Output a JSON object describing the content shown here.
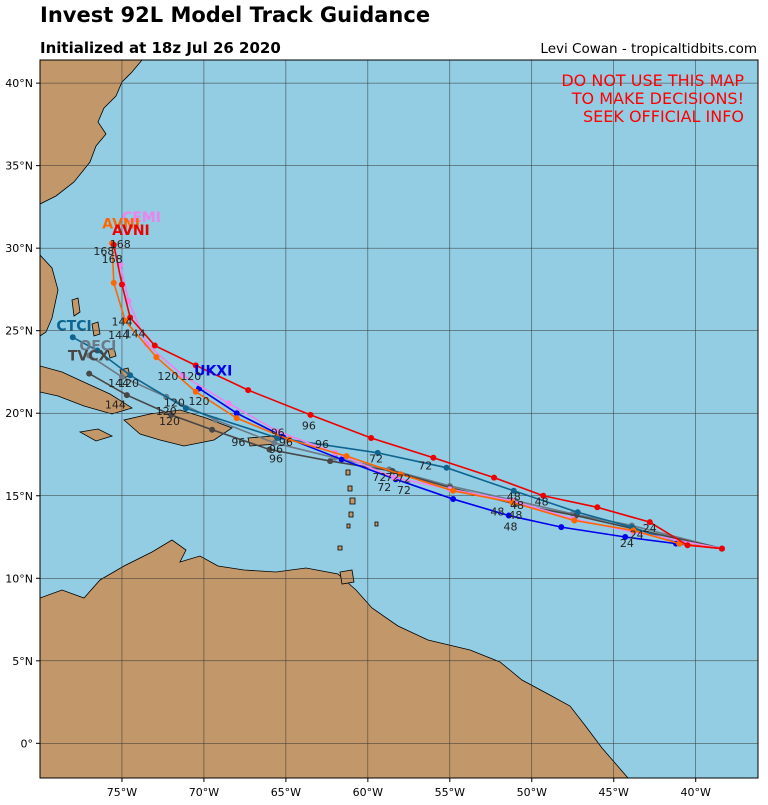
{
  "title": "Invest 92L Model Track Guidance",
  "subtitle": "Initialized at 18z Jul 26 2020",
  "credit": "Levi Cowan - tropicaltidbits.com",
  "warning": [
    "DO NOT USE THIS MAP",
    "TO MAKE DECISIONS!",
    "SEEK OFFICIAL INFO"
  ],
  "map": {
    "xlim": [
      -80,
      -36.2
    ],
    "ylim": [
      -2.1,
      41.4
    ],
    "xticks": [
      {
        "value": -75,
        "label": "75°W"
      },
      {
        "value": -70,
        "label": "70°W"
      },
      {
        "value": -65,
        "label": "65°W"
      },
      {
        "value": -60,
        "label": "60°W"
      },
      {
        "value": -55,
        "label": "55°W"
      },
      {
        "value": -50,
        "label": "50°W"
      },
      {
        "value": -45,
        "label": "45°W"
      },
      {
        "value": -40,
        "label": "40°W"
      }
    ],
    "yticks": [
      {
        "value": 0,
        "label": "0°"
      },
      {
        "value": 5,
        "label": "5°N"
      },
      {
        "value": 10,
        "label": "10°N"
      },
      {
        "value": 15,
        "label": "15°N"
      },
      {
        "value": 20,
        "label": "20°N"
      },
      {
        "value": 25,
        "label": "25°N"
      },
      {
        "value": 30,
        "label": "30°N"
      },
      {
        "value": 35,
        "label": "35°N"
      },
      {
        "value": 40,
        "label": "40°N"
      }
    ],
    "tracks": [
      {
        "name": "OFCI",
        "color": "#6a7a86",
        "label_at": [
          -77.6,
          23.8
        ],
        "points": [
          [
            -38.4,
            11.8
          ],
          [
            -43.9,
            13.2
          ],
          [
            -47.5,
            13.9
          ],
          [
            -51,
            14.7
          ],
          [
            -55,
            15.6
          ],
          [
            -58.7,
            16.6
          ],
          [
            -62,
            17.3
          ],
          [
            -65.7,
            18.2
          ],
          [
            -69.3,
            19.6
          ],
          [
            -72.3,
            21.0
          ],
          [
            -75,
            22.2
          ],
          [
            -77,
            23.5
          ]
        ]
      },
      {
        "name": "TVCX",
        "color": "#474747",
        "label_at": [
          -78.3,
          23.2
        ],
        "points": [
          [
            -38.4,
            11.8
          ],
          [
            -43.8,
            13.0
          ],
          [
            -47.3,
            13.8
          ],
          [
            -51,
            14.5
          ],
          [
            -55,
            15.5
          ],
          [
            -58.5,
            16.5
          ],
          [
            -62.3,
            17.1
          ],
          [
            -66,
            17.8
          ],
          [
            -69.5,
            19.0
          ],
          [
            -72,
            19.9
          ],
          [
            -74.7,
            21.1
          ],
          [
            -77,
            22.4
          ]
        ]
      },
      {
        "name": "CTCI",
        "color": "#0e6590",
        "label_at": [
          -79.0,
          25.0
        ],
        "points": [
          [
            -38.4,
            11.8
          ],
          [
            -41,
            12.1
          ],
          [
            -43.9,
            13.1
          ],
          [
            -47.2,
            14.0
          ],
          [
            -51.1,
            15.3
          ],
          [
            -55.2,
            16.7
          ],
          [
            -59.4,
            17.6
          ],
          [
            -65.5,
            18.5
          ],
          [
            -71.1,
            20.3
          ],
          [
            -74.5,
            22.3
          ],
          [
            -76.5,
            23.8
          ],
          [
            -78.0,
            24.6
          ]
        ]
      },
      {
        "name": "UKXI",
        "color": "#0000ee",
        "label_at": [
          -70.6,
          22.3
        ],
        "points": [
          [
            -38.4,
            11.8
          ],
          [
            -41.2,
            12.1
          ],
          [
            -44.3,
            12.5
          ],
          [
            -48.2,
            13.1
          ],
          [
            -51.4,
            13.8
          ],
          [
            -54.8,
            14.8
          ],
          [
            -58.3,
            16.0
          ],
          [
            -61.6,
            17.2
          ],
          [
            -65.2,
            18.6
          ],
          [
            -68.0,
            20.0
          ],
          [
            -70.3,
            21.5
          ]
        ]
      },
      {
        "name": "CEMI",
        "color": "#ee82ee",
        "label_at": [
          -75.0,
          31.6
        ],
        "points": [
          [
            -38.4,
            11.8
          ],
          [
            -43.8,
            12.8
          ],
          [
            -47.5,
            13.6
          ],
          [
            -51.2,
            14.7
          ],
          [
            -55,
            15.4
          ],
          [
            -58.4,
            16.1
          ],
          [
            -62,
            17.6
          ],
          [
            -65.5,
            18.9
          ],
          [
            -68.5,
            20.6
          ],
          [
            -71.3,
            22.3
          ],
          [
            -73.5,
            24.2
          ],
          [
            -74.6,
            26.8
          ],
          [
            -75.1,
            29.0
          ]
        ]
      },
      {
        "name": "AVNI",
        "color": "#ff6600",
        "label_at": [
          -76.2,
          31.2
        ],
        "points": [
          [
            -38.4,
            11.8
          ],
          [
            -41,
            12.1
          ],
          [
            -43.8,
            12.9
          ],
          [
            -47.4,
            13.5
          ],
          [
            -51.2,
            14.6
          ],
          [
            -54.8,
            15.3
          ],
          [
            -58.0,
            16.3
          ],
          [
            -61.3,
            17.4
          ],
          [
            -64.8,
            18.4
          ],
          [
            -68.0,
            19.7
          ],
          [
            -70.5,
            21.3
          ],
          [
            -72.9,
            23.4
          ],
          [
            -74.8,
            25.6
          ],
          [
            -75.5,
            27.9
          ],
          [
            -75.6,
            30.3
          ]
        ]
      },
      {
        "name": "AVNI",
        "color": "#ee0000",
        "label_at": [
          -75.6,
          30.8
        ],
        "points": [
          [
            -38.4,
            11.8
          ],
          [
            -40.5,
            12.0
          ],
          [
            -42.8,
            13.4
          ],
          [
            -46.0,
            14.3
          ],
          [
            -49.3,
            15.0
          ],
          [
            -52.3,
            16.1
          ],
          [
            -56.0,
            17.3
          ],
          [
            -59.8,
            18.5
          ],
          [
            -63.5,
            19.9
          ],
          [
            -67.3,
            21.4
          ],
          [
            -70.5,
            22.9
          ],
          [
            -73.0,
            24.1
          ],
          [
            -74.5,
            25.8
          ],
          [
            -75.0,
            27.8
          ],
          [
            -75.5,
            30.2
          ]
        ]
      }
    ],
    "hour_labels": [
      {
        "text": "24",
        "lon": -42.8,
        "lat": 12.8
      },
      {
        "text": "24",
        "lon": -43.6,
        "lat": 12.4
      },
      {
        "text": "24",
        "lon": -44.2,
        "lat": 11.9
      },
      {
        "text": "48",
        "lon": -51.1,
        "lat": 14.7
      },
      {
        "text": "48",
        "lon": -49.4,
        "lat": 14.4
      },
      {
        "text": "48",
        "lon": -50.9,
        "lat": 14.2
      },
      {
        "text": "48",
        "lon": -52.1,
        "lat": 13.8
      },
      {
        "text": "48",
        "lon": -51.0,
        "lat": 13.6
      },
      {
        "text": "48",
        "lon": -51.3,
        "lat": 12.9
      },
      {
        "text": "72",
        "lon": -59.5,
        "lat": 17.0
      },
      {
        "text": "72",
        "lon": -56.5,
        "lat": 16.6
      },
      {
        "text": "72",
        "lon": -59.3,
        "lat": 15.9
      },
      {
        "text": "72",
        "lon": -58.5,
        "lat": 15.9
      },
      {
        "text": "72",
        "lon": -57.8,
        "lat": 15.8
      },
      {
        "text": "72",
        "lon": -59.0,
        "lat": 15.3
      },
      {
        "text": "72",
        "lon": -57.8,
        "lat": 15.1
      },
      {
        "text": "96",
        "lon": -63.6,
        "lat": 19.0
      },
      {
        "text": "96",
        "lon": -65.5,
        "lat": 18.6
      },
      {
        "text": "96",
        "lon": -67.9,
        "lat": 18.0
      },
      {
        "text": "96",
        "lon": -65.0,
        "lat": 18.0
      },
      {
        "text": "96",
        "lon": -62.8,
        "lat": 17.9
      },
      {
        "text": "96",
        "lon": -65.6,
        "lat": 17.6
      },
      {
        "text": "96",
        "lon": -65.6,
        "lat": 17.0
      },
      {
        "text": "120",
        "lon": -72.2,
        "lat": 22.0
      },
      {
        "text": "120",
        "lon": -70.8,
        "lat": 22.0
      },
      {
        "text": "120",
        "lon": -74.6,
        "lat": 21.6
      },
      {
        "text": "120",
        "lon": -70.3,
        "lat": 20.5
      },
      {
        "text": "120",
        "lon": -71.8,
        "lat": 20.4
      },
      {
        "text": "120",
        "lon": -72.3,
        "lat": 19.9
      },
      {
        "text": "120",
        "lon": -72.1,
        "lat": 19.3
      },
      {
        "text": "144",
        "lon": -75.2,
        "lat": 21.6
      },
      {
        "text": "144",
        "lon": -75.4,
        "lat": 20.3
      },
      {
        "text": "144",
        "lon": -75.0,
        "lat": 25.3
      },
      {
        "text": "144",
        "lon": -74.2,
        "lat": 24.6
      },
      {
        "text": "144",
        "lon": -75.2,
        "lat": 24.5
      },
      {
        "text": "168",
        "lon": -75.1,
        "lat": 30.0
      },
      {
        "text": "168",
        "lon": -76.1,
        "lat": 29.6
      },
      {
        "text": "168",
        "lon": -75.6,
        "lat": 29.1
      }
    ]
  }
}
